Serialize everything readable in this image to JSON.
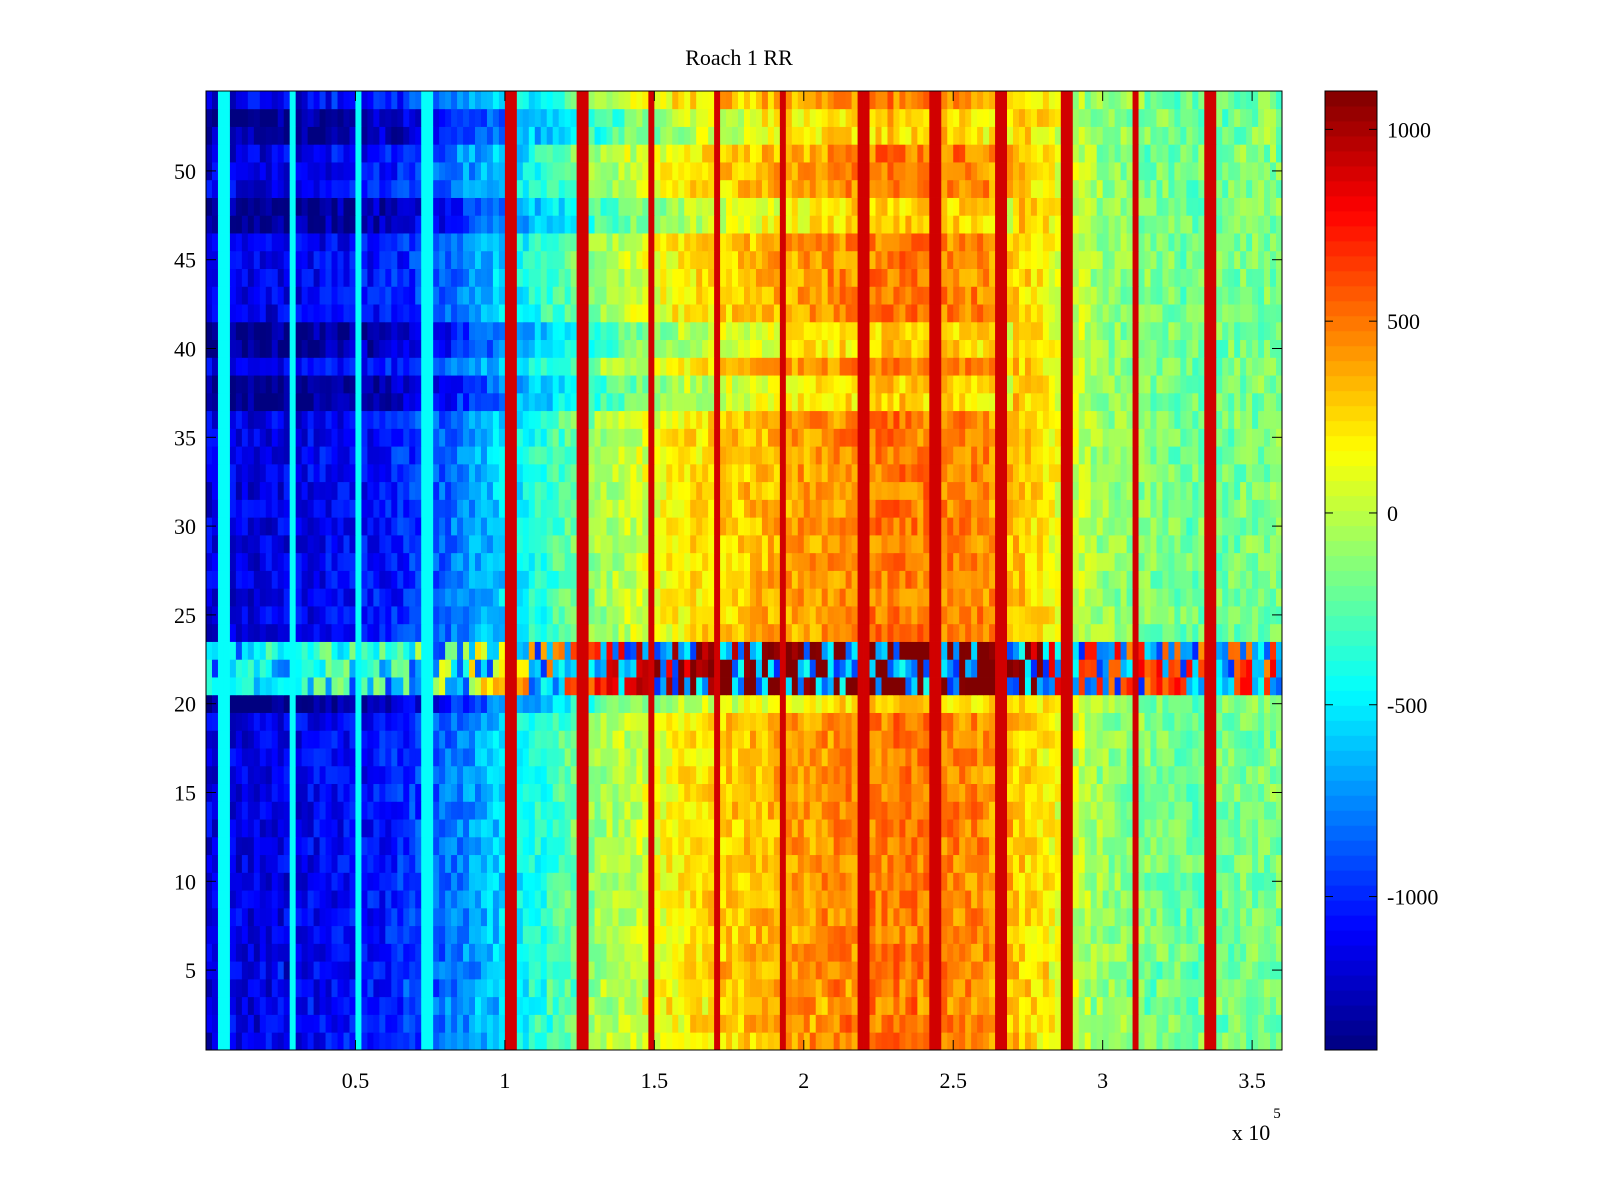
{
  "chart_data": {
    "type": "heatmap",
    "title": "Roach 1 RR",
    "xlabel": "",
    "ylabel": "",
    "x_range": [
      0,
      360000
    ],
    "y_range": [
      0.5,
      54.5
    ],
    "x_ticks": [
      0.5,
      1,
      1.5,
      2,
      2.5,
      3,
      3.5
    ],
    "x_tick_labels": [
      "0.5",
      "1",
      "1.5",
      "2",
      "2.5",
      "3",
      "3.5"
    ],
    "x_exponent_label": "x 10",
    "x_exponent_power": "5",
    "y_ticks": [
      5,
      10,
      15,
      20,
      25,
      30,
      35,
      40,
      45,
      50
    ],
    "y_tick_labels": [
      "5",
      "10",
      "15",
      "20",
      "25",
      "30",
      "35",
      "40",
      "45",
      "50"
    ],
    "rows": 54,
    "colormap": "jet",
    "color_range": [
      -1400,
      1100
    ],
    "colorbar_ticks": [
      1000,
      500,
      0,
      -500,
      -1000
    ],
    "colorbar_tick_labels": [
      "1000",
      "500",
      "0",
      "-500",
      "-1000"
    ],
    "trend_profile": {
      "x": [
        0,
        20000,
        40000,
        60000,
        80000,
        100000,
        130000,
        160000,
        200000,
        230000,
        260000,
        280000,
        300000,
        330000,
        360000
      ],
      "value": [
        -1150,
        -1150,
        -1100,
        -1050,
        -850,
        -550,
        -100,
        200,
        400,
        500,
        450,
        200,
        -100,
        -200,
        -150
      ]
    },
    "vertical_stripes_x": [
      6000,
      29000,
      51000,
      74000,
      102000,
      126000,
      149000,
      171000,
      193000,
      220000,
      244000,
      266000,
      288000,
      311000,
      336000
    ],
    "anomalous_rows": [
      21,
      22,
      23
    ],
    "dark_rows": [
      20,
      37,
      38,
      40,
      41,
      47,
      48,
      52,
      53
    ],
    "grid": false,
    "legend": "none"
  }
}
